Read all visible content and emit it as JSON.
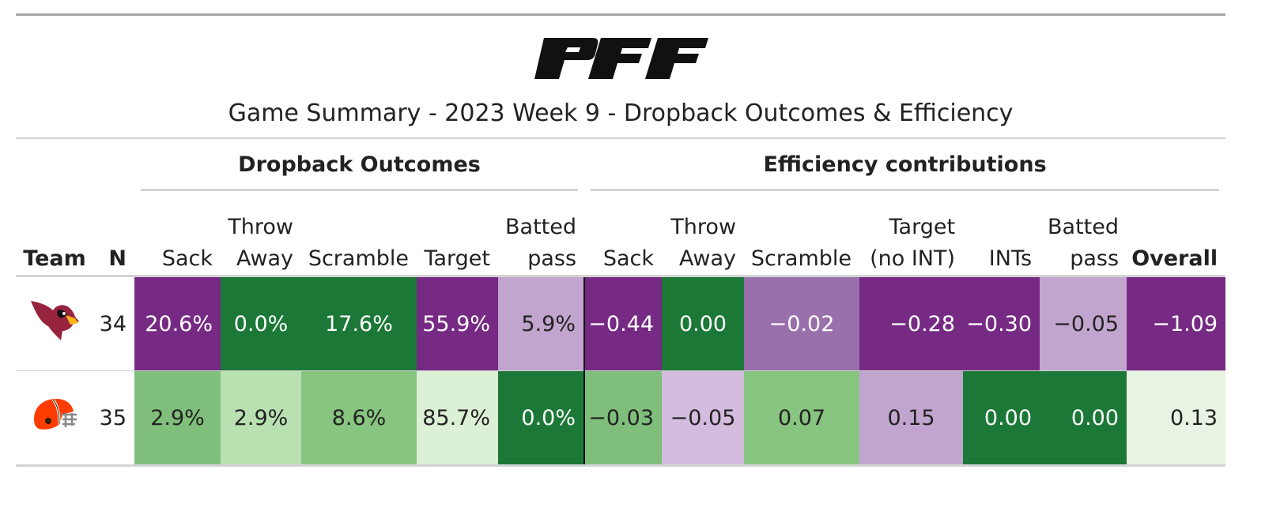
{
  "brand": {
    "logo_text": "PFF"
  },
  "title": "Game Summary - 2023 Week 9 - Dropback Outcomes & Efficiency",
  "spanners": {
    "dropback": "Dropback Outcomes",
    "efficiency": "Efficiency contributions"
  },
  "columns": {
    "team": "Team",
    "n": "N",
    "d_sack": "Sack",
    "d_throw_1": "Throw",
    "d_throw_2": "Away",
    "d_scramble": "Scramble",
    "d_target": "Target",
    "d_batted_1": "Batted",
    "d_batted_2": "pass",
    "e_sack": "Sack",
    "e_throw_1": "Throw",
    "e_throw_2": "Away",
    "e_scramble": "Scramble",
    "e_target_1": "Target",
    "e_target_2": "(no INT)",
    "e_ints": "INTs",
    "e_batted_1": "Batted",
    "e_batted_2": "pass",
    "e_overall": "Overall"
  },
  "rows": [
    {
      "team": "cardinals",
      "logo_icon": "cardinals-logo-icon",
      "n": "34",
      "cells": [
        {
          "v": "20.6%",
          "bg": "#762a83"
        },
        {
          "v": "0.0%",
          "bg": "#1b7837"
        },
        {
          "v": "17.6%",
          "bg": "#1b7837"
        },
        {
          "v": "55.9%",
          "bg": "#762a83"
        },
        {
          "v": "5.9%",
          "bg": "#c2a5cf"
        },
        {
          "v": "−0.44",
          "bg": "#762a83"
        },
        {
          "v": "0.00",
          "bg": "#1b7837"
        },
        {
          "v": "−0.02",
          "bg": "#9970ab"
        },
        {
          "v": "−0.28",
          "bg": "#762a83"
        },
        {
          "v": "−0.30",
          "bg": "#762a83"
        },
        {
          "v": "−0.05",
          "bg": "#c2a5cf"
        },
        {
          "v": "−1.09",
          "bg": "#762a83"
        }
      ]
    },
    {
      "team": "browns",
      "logo_icon": "browns-helmet-icon",
      "n": "35",
      "cells": [
        {
          "v": "2.9%",
          "bg": "#7fbf7b"
        },
        {
          "v": "2.9%",
          "bg": "#b8e0b1"
        },
        {
          "v": "8.6%",
          "bg": "#88c580"
        },
        {
          "v": "85.7%",
          "bg": "#dcf0d6"
        },
        {
          "v": "0.0%",
          "bg": "#1b7837"
        },
        {
          "v": "−0.03",
          "bg": "#7fbf7b"
        },
        {
          "v": "−0.05",
          "bg": "#d4bcde"
        },
        {
          "v": "0.07",
          "bg": "#88c580"
        },
        {
          "v": "0.15",
          "bg": "#c2a5cf"
        },
        {
          "v": "0.00",
          "bg": "#1b7837"
        },
        {
          "v": "0.00",
          "bg": "#1b7837"
        },
        {
          "v": "0.13",
          "bg": "#e7f4e3"
        }
      ]
    }
  ]
}
